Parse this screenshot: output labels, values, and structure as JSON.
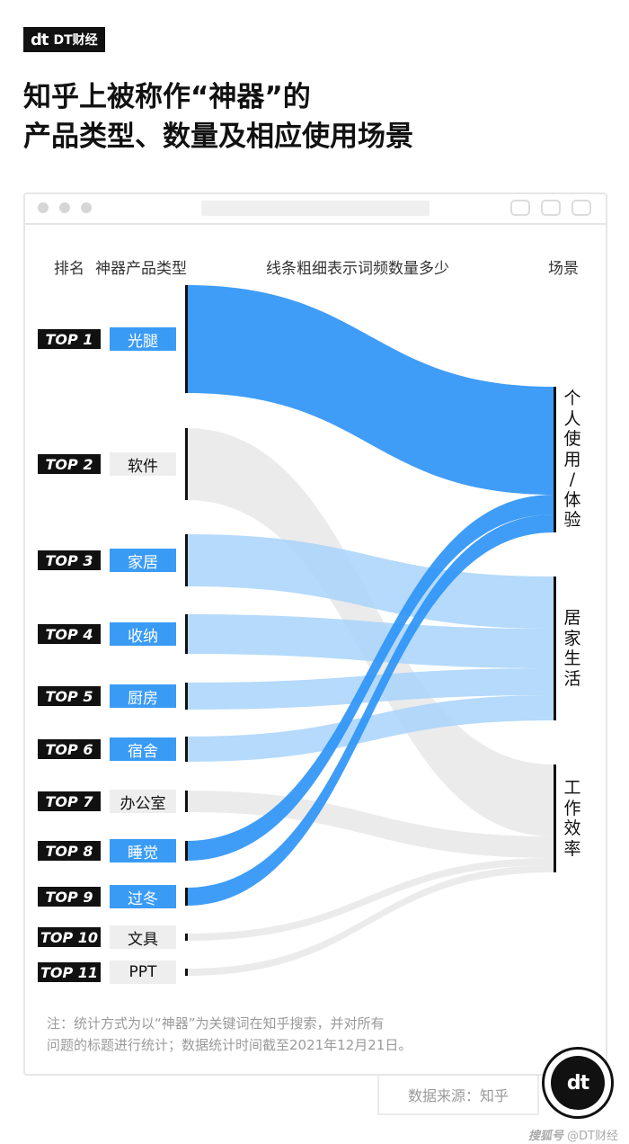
{
  "brand": {
    "logo": "dt",
    "name": "DT财经"
  },
  "title_lines": [
    "知乎上被称作“神器”的",
    "产品类型、数量及相应使用场景"
  ],
  "headers": {
    "rank": "排名",
    "type": "神器产品类型",
    "middle": "线条粗细表示词频数量多少",
    "scene": "场景"
  },
  "note_lines": [
    "注：统计方式为以“神器”为关键词在知乎搜索，并对所有",
    "问题的标题进行统计；数据统计时间截至2021年12月21日。"
  ],
  "source": "数据来源：知乎",
  "footer": {
    "platform": "搜狐号",
    "account": "@DT财经"
  },
  "colors": {
    "strong": "#2f95f6",
    "light": "#a8d4fb",
    "grey": "#e4e4e4",
    "blue_tag": "#3a9bf5",
    "grey_tag": "#eeeeee"
  },
  "chart_data": {
    "type": "sankey",
    "title": "知乎上被称作“神器”的产品类型、数量及相应使用场景",
    "sources": [
      {
        "rank": "TOP 1",
        "name": "光腿",
        "value": 120,
        "tag": "blue"
      },
      {
        "rank": "TOP 2",
        "name": "软件",
        "value": 80,
        "tag": "grey"
      },
      {
        "rank": "TOP 3",
        "name": "家居",
        "value": 58,
        "tag": "blue"
      },
      {
        "rank": "TOP 4",
        "name": "收纳",
        "value": 44,
        "tag": "blue"
      },
      {
        "rank": "TOP 5",
        "name": "厨房",
        "value": 30,
        "tag": "blue"
      },
      {
        "rank": "TOP 6",
        "name": "宿舍",
        "value": 28,
        "tag": "blue"
      },
      {
        "rank": "TOP 7",
        "name": "办公室",
        "value": 24,
        "tag": "grey"
      },
      {
        "rank": "TOP 8",
        "name": "睡觉",
        "value": 22,
        "tag": "blue"
      },
      {
        "rank": "TOP 9",
        "name": "过冬",
        "value": 20,
        "tag": "blue"
      },
      {
        "rank": "TOP 10",
        "name": "文具",
        "value": 8,
        "tag": "grey"
      },
      {
        "rank": "TOP 11",
        "name": "PPT",
        "value": 8,
        "tag": "grey"
      }
    ],
    "targets": [
      {
        "name": "个人使用/体验",
        "chars": [
          "个",
          "人",
          "使",
          "用",
          "/",
          "体",
          "验"
        ]
      },
      {
        "name": "居家生活",
        "chars": [
          "居",
          "家",
          "生",
          "活"
        ]
      },
      {
        "name": "工作效率",
        "chars": [
          "工",
          "作",
          "效",
          "率"
        ]
      }
    ],
    "links": [
      {
        "source": "光腿",
        "target": "个人使用/体验",
        "value": 120,
        "style": "strong"
      },
      {
        "source": "睡觉",
        "target": "个人使用/体验",
        "value": 22,
        "style": "strong"
      },
      {
        "source": "过冬",
        "target": "个人使用/体验",
        "value": 20,
        "style": "strong"
      },
      {
        "source": "家居",
        "target": "居家生活",
        "value": 58,
        "style": "light"
      },
      {
        "source": "收纳",
        "target": "居家生活",
        "value": 44,
        "style": "light"
      },
      {
        "source": "厨房",
        "target": "居家生活",
        "value": 30,
        "style": "light"
      },
      {
        "source": "宿舍",
        "target": "居家生活",
        "value": 28,
        "style": "light"
      },
      {
        "source": "软件",
        "target": "工作效率",
        "value": 80,
        "style": "grey"
      },
      {
        "source": "办公室",
        "target": "工作效率",
        "value": 24,
        "style": "grey"
      },
      {
        "source": "文具",
        "target": "工作效率",
        "value": 8,
        "style": "grey"
      },
      {
        "source": "PPT",
        "target": "工作效率",
        "value": 8,
        "style": "grey"
      }
    ]
  }
}
